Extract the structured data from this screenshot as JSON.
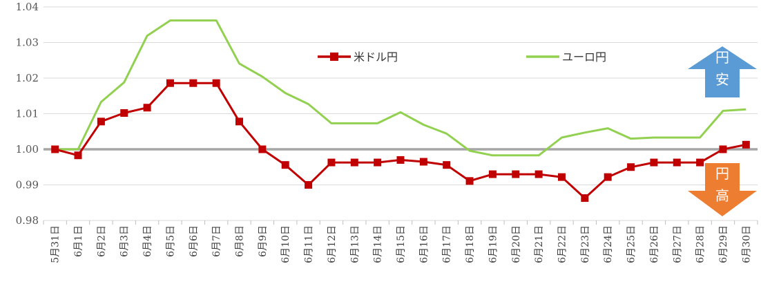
{
  "chart_data": {
    "type": "line",
    "ylim": [
      0.98,
      1.04
    ],
    "yticks": [
      0.98,
      0.99,
      1.0,
      1.01,
      1.02,
      1.03,
      1.04
    ],
    "ytick_labels": [
      "0.98",
      "0.99",
      "1.00",
      "1.01",
      "1.02",
      "1.03",
      "1.04"
    ],
    "grid": true,
    "legend_position": "top-center",
    "baseline": 1.0,
    "baseline_color": "#A6A6A6",
    "categories": [
      "5月31日",
      "6月1日",
      "6月2日",
      "6月3日",
      "6月4日",
      "6月5日",
      "6月6日",
      "6月7日",
      "6月8日",
      "6月9日",
      "6月10日",
      "6月11日",
      "6月12日",
      "6月13日",
      "6月14日",
      "6月15日",
      "6月16日",
      "6月17日",
      "6月18日",
      "6月19日",
      "6月20日",
      "6月21日",
      "6月22日",
      "6月23日",
      "6月24日",
      "6月25日",
      "6月26日",
      "6月27日",
      "6月28日",
      "6月29日",
      "6月30日"
    ],
    "series": [
      {
        "name": "米ドル円",
        "color": "#C00000",
        "marker": "square",
        "values": [
          1.0,
          0.9983,
          1.0078,
          1.0102,
          1.0117,
          1.0186,
          1.0186,
          1.0186,
          1.0078,
          1.0,
          0.9956,
          0.99,
          0.9963,
          0.9963,
          0.9963,
          0.997,
          0.9965,
          0.9956,
          0.9911,
          0.993,
          0.993,
          0.993,
          0.9922,
          0.9863,
          0.9922,
          0.995,
          0.9963,
          0.9963,
          0.9963,
          1.0,
          1.0013
        ]
      },
      {
        "name": "ユーロ円",
        "color": "#92D050",
        "marker": "none",
        "values": [
          1.0,
          1.0,
          1.0133,
          1.0188,
          1.0319,
          1.0362,
          1.0362,
          1.0362,
          1.0241,
          1.0204,
          1.0158,
          1.0127,
          1.0073,
          1.0073,
          1.0073,
          1.0104,
          1.0069,
          1.0044,
          0.9996,
          0.9983,
          0.9983,
          0.9983,
          1.0033,
          1.0047,
          1.0059,
          1.003,
          1.0033,
          1.0033,
          1.0033,
          1.0108,
          1.0112
        ]
      }
    ],
    "annotations": {
      "up_arrow": {
        "label": [
          "円",
          "安"
        ],
        "color": "#5B9BD5"
      },
      "down_arrow": {
        "label": [
          "円",
          "高"
        ],
        "color": "#ED7D31"
      }
    }
  }
}
